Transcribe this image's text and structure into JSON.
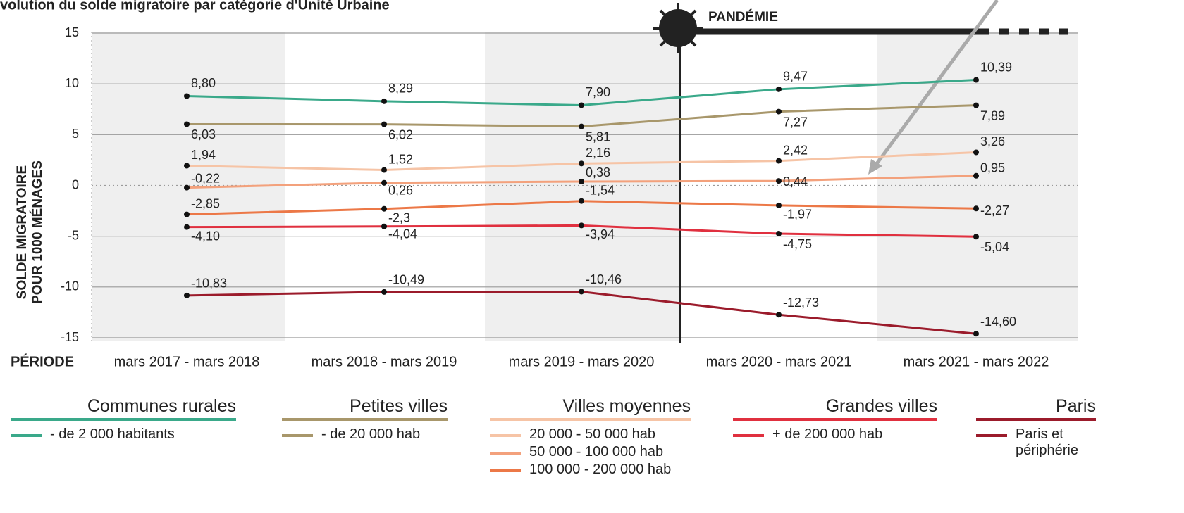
{
  "chart_data": {
    "type": "line",
    "title": "volution du solde migratoire par catégorie d'Unité Urbaine",
    "ylabel": [
      "SOLDE MIGRATOIRE",
      "POUR 1000 MÉNAGES"
    ],
    "xlabel": "PÉRIODE",
    "annotation": "PANDÉMIE",
    "categories": [
      "mars 2017 - mars 2018",
      "mars 2018 - mars 2019",
      "mars 2019 - mars 2020",
      "mars 2020 - mars 2021",
      "mars 2021 - mars 2022"
    ],
    "ylim": [
      -15,
      15
    ],
    "yticks": [
      15,
      10,
      5,
      0,
      -5,
      -10,
      -15
    ],
    "grid": true,
    "series": [
      {
        "group": "Communes rurales",
        "name": "- de 2 000 habitants",
        "color": "#3aa98a",
        "values": [
          8.8,
          8.29,
          7.9,
          9.47,
          10.39
        ],
        "value_labels": [
          "8,80",
          "8,29",
          "7,90",
          "9,47",
          "10,39"
        ]
      },
      {
        "group": "Petites villes",
        "name": "- de 20 000 hab",
        "color": "#a8976b",
        "values": [
          6.03,
          6.02,
          5.81,
          7.27,
          7.89
        ],
        "value_labels": [
          "6,03",
          "6,02",
          "5,81",
          "7,27",
          "7,89"
        ]
      },
      {
        "group": "Villes moyennes",
        "name": "20 000 - 50 000 hab",
        "color": "#f6c4a6",
        "values": [
          1.94,
          1.52,
          2.16,
          2.42,
          3.26
        ],
        "value_labels": [
          "1,94",
          "1,52",
          "2,16",
          "2,42",
          "3,26"
        ]
      },
      {
        "group": "Villes moyennes",
        "name": "50 000 - 100 000 hab",
        "color": "#f3a17c",
        "values": [
          -0.22,
          0.26,
          0.38,
          0.44,
          0.95
        ],
        "value_labels": [
          "-0,22",
          "0,26",
          "0,38",
          "0,44",
          "0,95"
        ]
      },
      {
        "group": "Villes moyennes",
        "name": "100 000 - 200 000 hab",
        "color": "#ec7847",
        "values": [
          -2.85,
          -2.3,
          -1.54,
          -1.97,
          -2.27
        ],
        "value_labels": [
          "-2,85",
          "-2,3",
          "-1,54",
          "-1,97",
          "-2,27"
        ]
      },
      {
        "group": "Grandes villes",
        "name": "+ de 200 000 hab",
        "color": "#e0303f",
        "values": [
          -4.1,
          -4.04,
          -3.94,
          -4.75,
          -5.04
        ],
        "value_labels": [
          "-4,10",
          "-4,04",
          "-3,94",
          "-4,75",
          "-5,04"
        ]
      },
      {
        "group": "Paris",
        "name": "Paris et périphérie",
        "color": "#9b1b2b",
        "values": [
          -10.83,
          -10.49,
          -10.46,
          -12.73,
          -14.6
        ],
        "value_labels": [
          "-10,83",
          "-10,49",
          "-10,46",
          "-12,73",
          "-14,60"
        ]
      }
    ]
  }
}
